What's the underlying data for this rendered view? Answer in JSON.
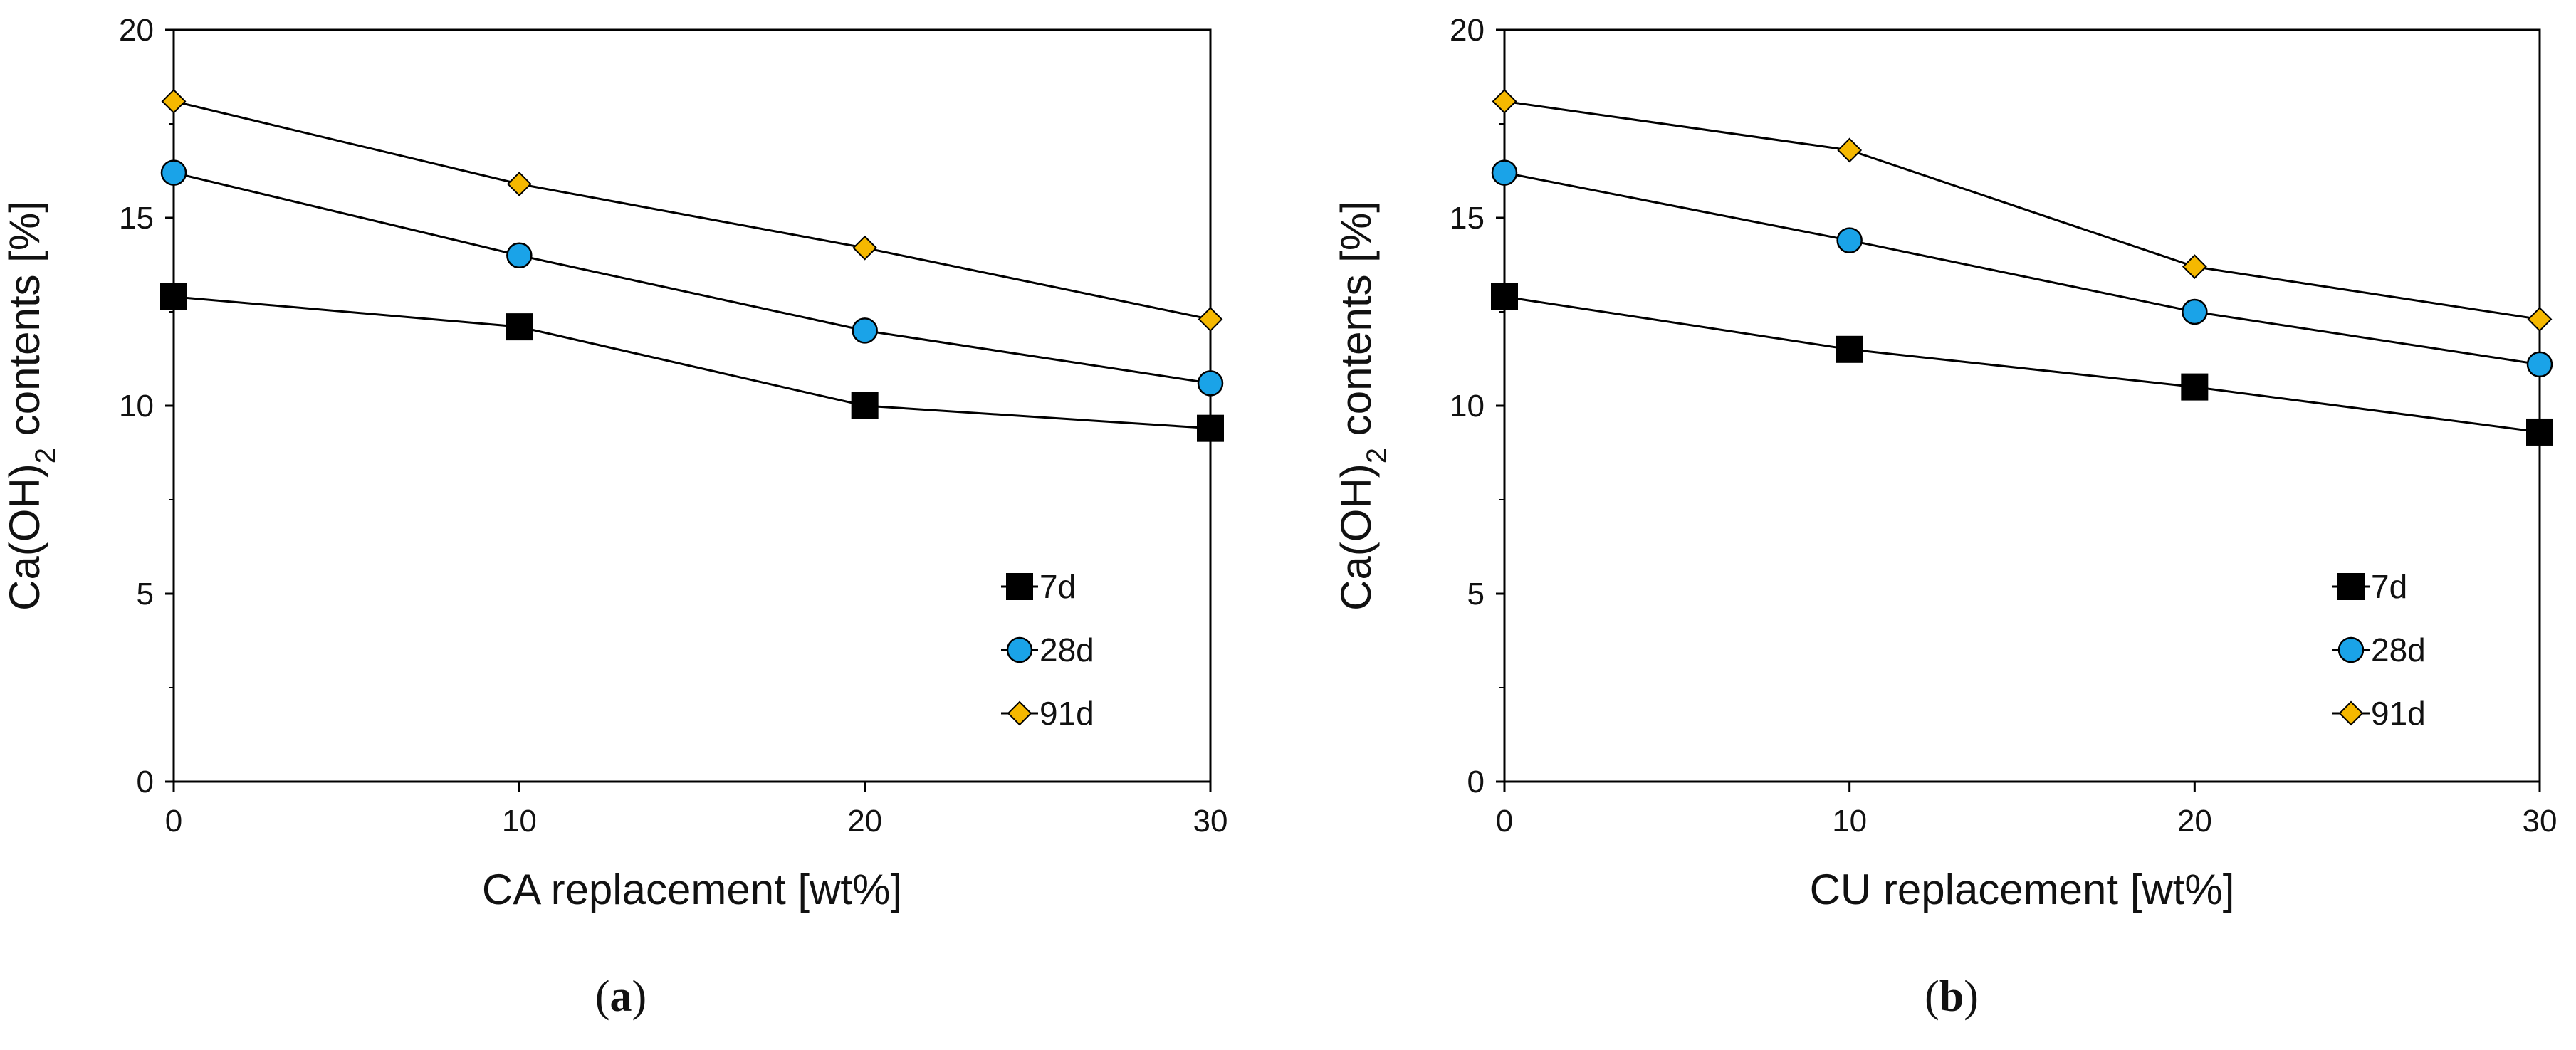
{
  "chart_data": [
    {
      "type": "line",
      "panel_label": "a",
      "xlabel": "CA replacement [wt%]",
      "ylabel_main": "Ca(OH)",
      "ylabel_sub": "2",
      "ylabel_rest": " contents [%]",
      "x": [
        0,
        10,
        20,
        30
      ],
      "xlim": [
        0,
        30
      ],
      "ylim": [
        0,
        20
      ],
      "xticks": [
        0,
        10,
        20,
        30
      ],
      "yticks": [
        0,
        5,
        10,
        15,
        20
      ],
      "grid": false,
      "legend_position": "bottom-right",
      "series": [
        {
          "name": "7d",
          "marker": "square",
          "color": "#000000",
          "values": [
            12.9,
            12.1,
            10.0,
            9.4
          ]
        },
        {
          "name": "28d",
          "marker": "circle",
          "color": "#1aa3e8",
          "values": [
            16.2,
            14.0,
            12.0,
            10.6
          ]
        },
        {
          "name": "91d",
          "marker": "diamond",
          "color": "#f5b800",
          "values": [
            18.1,
            15.9,
            14.2,
            12.3
          ]
        }
      ]
    },
    {
      "type": "line",
      "panel_label": "b",
      "xlabel": "CU replacement [wt%]",
      "ylabel_main": "Ca(OH)",
      "ylabel_sub": "2",
      "ylabel_rest": " contents [%]",
      "x": [
        0,
        10,
        20,
        30
      ],
      "xlim": [
        0,
        30
      ],
      "ylim": [
        0,
        20
      ],
      "xticks": [
        0,
        10,
        20,
        30
      ],
      "yticks": [
        0,
        5,
        10,
        15,
        20
      ],
      "grid": false,
      "legend_position": "bottom-right",
      "series": [
        {
          "name": "7d",
          "marker": "square",
          "color": "#000000",
          "values": [
            12.9,
            11.5,
            10.5,
            9.3
          ]
        },
        {
          "name": "28d",
          "marker": "circle",
          "color": "#1aa3e8",
          "values": [
            16.2,
            14.4,
            12.5,
            11.1
          ]
        },
        {
          "name": "91d",
          "marker": "diamond",
          "color": "#f5b800",
          "values": [
            18.1,
            16.8,
            13.7,
            12.3
          ]
        }
      ]
    }
  ]
}
